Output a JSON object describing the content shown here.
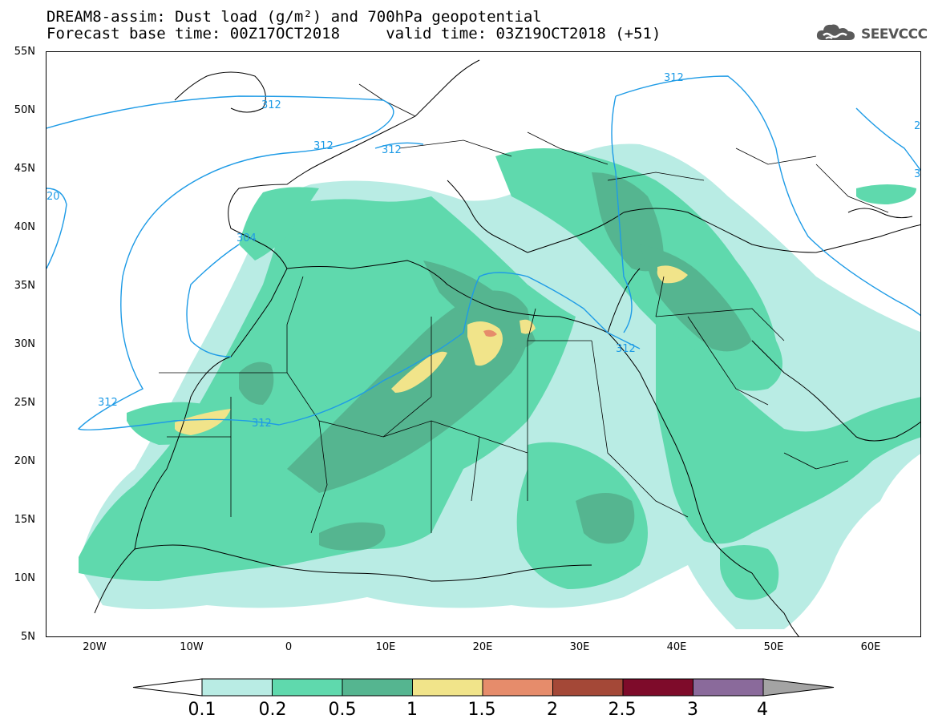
{
  "header": {
    "title_line1": "DREAM8-assim: Dust load (g/m²) and 700hPa geopotential",
    "title_line2": "Forecast base time: 00Z17OCT2018     valid time: 03Z19OCT2018 (+51)"
  },
  "logo": {
    "text": "SEEVCCC",
    "icon": "cloud-logo-icon"
  },
  "map": {
    "lat_labels": [
      "55N",
      "50N",
      "45N",
      "40N",
      "35N",
      "30N",
      "25N",
      "20N",
      "15N",
      "10N",
      "5N"
    ],
    "lon_labels": [
      "20W",
      "10W",
      "0",
      "10E",
      "20E",
      "30E",
      "40E",
      "50E",
      "60E"
    ],
    "contour_labels": [
      "312",
      "312",
      "312",
      "304",
      "312",
      "312",
      "312",
      "312",
      "20",
      "2",
      "3"
    ],
    "contour_color": "#1e9be6",
    "dust_colors": {
      "0.1-0.2": "#b9ece4",
      "0.2-0.5": "#5fd9ad",
      "0.5-1": "#55b590",
      "1-1.5": "#f1e48a",
      "1.5-2": "#e68c6b",
      "2-2.5": "#a44837",
      "2.5-3": "#7e0b2a",
      "3-4": "#8a6a9b",
      ">4": "#a4a4a4"
    }
  },
  "colorbar": {
    "labels": [
      "0.1",
      "0.2",
      "0.5",
      "1",
      "1.5",
      "2",
      "2.5",
      "3",
      "4"
    ],
    "colors": [
      "#b9ece4",
      "#5fd9ad",
      "#55b590",
      "#f1e48a",
      "#e68c6b",
      "#a44837",
      "#7e0b2a",
      "#8a6a9b"
    ],
    "under_color": "#ffffff",
    "over_color": "#a4a4a4"
  }
}
